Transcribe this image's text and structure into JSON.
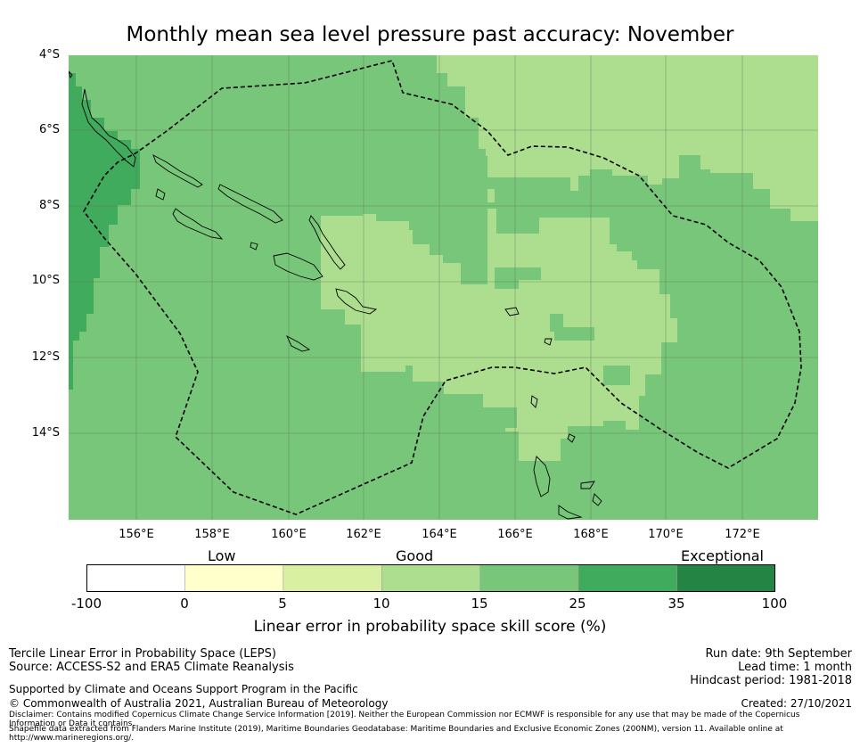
{
  "title": "Monthly mean sea level pressure past accuracy: November",
  "map": {
    "lat_labels": [
      "4°S",
      "6°S",
      "8°S",
      "10°S",
      "12°S",
      "14°S"
    ],
    "lon_labels": [
      "156°E",
      "158°E",
      "160°E",
      "162°E",
      "164°E",
      "166°E",
      "168°E",
      "170°E",
      "172°E"
    ],
    "boundary": "dashed line"
  },
  "colorbar": {
    "categories": [
      "Low",
      "Good",
      "Exceptional"
    ],
    "ticks": [
      "-100",
      "0",
      "5",
      "10",
      "15",
      "25",
      "35",
      "100"
    ],
    "colors": [
      "#ffffff",
      "#ffffcc",
      "#d9f0a3",
      "#addd8e",
      "#78c679",
      "#41ab5d",
      "#238443"
    ],
    "label": "Linear error in probability space skill score (%)"
  },
  "footer": {
    "left_line1": "Tercile Linear Error in Probability Space (LEPS)",
    "left_line2": "Source: ACCESS-S2 and ERA5 Climate Reanalysis",
    "support": "Supported by Climate and Oceans Support Program in the Pacific",
    "copyright": "© Commonwealth of Australia 2021, Australian Bureau of Meteorology",
    "disclaimer1": "Disclaimer: Contains modified Copernicus Climate Change Service Information [2019]. Neither the European Commission nor ECMWF is responsible for any use that may be made of the Copernicus Information or Data it contains.",
    "disclaimer2": "Shapefile data extracted from Flanders Marine Institute (2019), Maritime Boundaries Geodatabase: Maritime Boundaries and Exclusive Economic Zones (200NM), version 11. Available online at http://www.marineregions.org/.",
    "run_date": "Run date: 9th September",
    "lead_time": "Lead time: 1 month",
    "hindcast": "Hindcast period: 1981-2018",
    "created": "Created: 27/10/2021"
  }
}
